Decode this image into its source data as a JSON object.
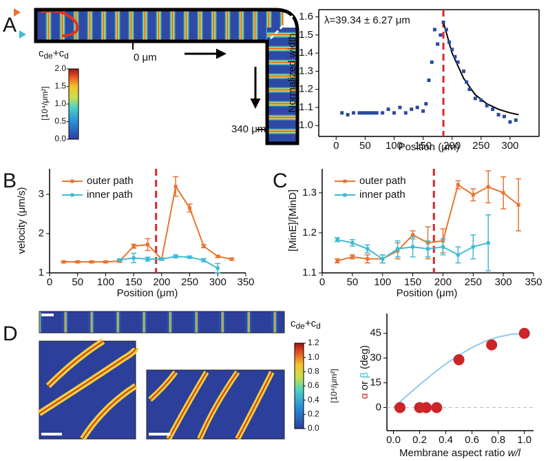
{
  "panel_labels": [
    "A",
    "B",
    "C",
    "D"
  ],
  "simulation_a": {
    "colorbar_label": [
      "c",
      "de",
      "+c",
      "d"
    ],
    "colorbar_unit": "[10⁴/μm²]",
    "range": [
      0,
      2
    ],
    "colorbar_ticks": [
      {
        "value": 0,
        "label": "0.0"
      },
      0.5,
      {
        "value": 1,
        "label": "1.0"
      },
      1.5,
      {
        "value": 2,
        "label": "2.0"
      }
    ],
    "start_label": "0 μm",
    "end_label": "340 μm"
  },
  "simulation_d": {
    "colorbar_label": [
      "c",
      "de",
      "+c",
      "d"
    ],
    "colorbar_unit": "[10⁴/μm²]",
    "range": [
      0,
      1.2
    ],
    "colorbar_ticks": [
      {
        "value": 0,
        "label": "0.0"
      },
      0.2,
      0.4,
      0.6,
      0.8,
      {
        "value": 1,
        "label": "1.0"
      },
      1.2
    ]
  },
  "chart_data": [
    {
      "type": "scatter",
      "x_label": "Position (μm)",
      "y_label": "Normalized width",
      "annotation": "λ=39.34 ± 6.27 μm",
      "marker": "square",
      "color": "#2b4a9b",
      "x": [
        10,
        20,
        30,
        40,
        45,
        50,
        55,
        60,
        65,
        70,
        80,
        90,
        100,
        110,
        120,
        130,
        140,
        150,
        155,
        160,
        165,
        170,
        175,
        180,
        185,
        190,
        195,
        200,
        205,
        210,
        220,
        225,
        230,
        240,
        250,
        260,
        270,
        280,
        290,
        300,
        310
      ],
      "values": [
        1.07,
        1.06,
        1.07,
        1.07,
        1.07,
        1.07,
        1.07,
        1.07,
        1.07,
        1.07,
        1.07,
        1.09,
        1.07,
        1.1,
        1.07,
        1.09,
        1.1,
        1.08,
        1.12,
        1.25,
        1.35,
        1.53,
        1.45,
        1.5,
        1.57,
        1.53,
        1.46,
        1.42,
        1.38,
        1.35,
        1.3,
        1.24,
        1.2,
        1.15,
        1.14,
        1.11,
        1.09,
        1.06,
        1.05,
        1.02,
        1.03
      ],
      "fit": {
        "color": "#000000",
        "x": [
          185,
          200,
          220,
          240,
          260,
          280,
          300,
          315
        ],
        "values": [
          1.57,
          1.4,
          1.26,
          1.17,
          1.12,
          1.09,
          1.07,
          1.06
        ]
      },
      "marker_line": {
        "x": 185,
        "color": "#d9262b"
      },
      "xlim": [
        -30,
        350
      ],
      "ylim": [
        0.94,
        1.64
      ],
      "xticks": [
        0,
        50,
        100,
        150,
        200,
        250,
        300
      ],
      "yticks": [
        {
          "value": 1,
          "label": "1.0"
        },
        1.1,
        1.2,
        1.3,
        1.4,
        1.5,
        1.6
      ]
    },
    {
      "type": "line",
      "x_label": "Position (μm)",
      "y_label": "velocity (μm/s)",
      "legend": "upper left",
      "marker_line": {
        "x": 190,
        "color": "#d9262b"
      },
      "series": [
        {
          "name": "outer path",
          "color": "#e8742f",
          "x": [
            25,
            50,
            75,
            100,
            125,
            150,
            175,
            200,
            225,
            250,
            275,
            300,
            325
          ],
          "values": [
            1.28,
            1.28,
            1.28,
            1.28,
            1.3,
            1.68,
            1.72,
            1.35,
            3.2,
            2.65,
            1.68,
            1.42,
            1.35
          ],
          "errors": [
            0.02,
            0.02,
            0.02,
            0.02,
            0.03,
            0.05,
            0.15,
            0.03,
            0.25,
            0.1,
            0.04,
            0.03,
            0.03
          ]
        },
        {
          "name": "inner path",
          "color": "#3fbad6",
          "x": [
            125,
            150,
            175,
            200,
            225,
            250,
            275,
            300
          ],
          "values": [
            1.33,
            1.38,
            1.35,
            1.35,
            1.42,
            1.4,
            1.32,
            1.12
          ],
          "errors": [
            0.03,
            0.12,
            0.05,
            0.03,
            0.04,
            0.03,
            0.04,
            0.12
          ]
        }
      ],
      "xlim": [
        0,
        350
      ],
      "ylim": [
        1,
        3.65
      ],
      "xticks": [
        0,
        50,
        100,
        150,
        200,
        250,
        300,
        350
      ],
      "yticks": [
        1,
        2,
        3
      ]
    },
    {
      "type": "line",
      "x_label": "Position (μm)",
      "y_label": "[MinE]/[MinD]",
      "legend": "upper left",
      "marker_line": {
        "x": 185,
        "color": "#d9262b"
      },
      "series": [
        {
          "name": "outer path",
          "color": "#e8742f",
          "x": [
            25,
            50,
            75,
            100,
            125,
            150,
            175,
            200,
            225,
            250,
            275,
            300,
            325
          ],
          "values": [
            1.13,
            1.14,
            1.135,
            1.135,
            1.155,
            1.195,
            1.175,
            1.18,
            1.32,
            1.295,
            1.315,
            1.3,
            1.27
          ],
          "errors": [
            0.005,
            0.005,
            0.01,
            0.01,
            0.02,
            0.01,
            0.04,
            0.03,
            0.01,
            0.015,
            0.04,
            0.04,
            0.065
          ]
        },
        {
          "name": "inner path",
          "color": "#3fbad6",
          "x": [
            25,
            50,
            75,
            100,
            125,
            150,
            175,
            200,
            225,
            250,
            275
          ],
          "values": [
            1.183,
            1.175,
            1.16,
            1.135,
            1.16,
            1.165,
            1.16,
            1.165,
            1.145,
            1.165,
            1.175
          ],
          "errors": [
            0.005,
            0.008,
            0.01,
            0.01,
            0.02,
            0.025,
            0.02,
            0.02,
            0.02,
            0.03,
            0.07
          ]
        }
      ],
      "xlim": [
        0,
        350
      ],
      "ylim": [
        1.1,
        1.36
      ],
      "xticks": [
        0,
        50,
        100,
        150,
        200,
        250,
        300,
        350
      ],
      "yticks": [
        1.1,
        1.2,
        1.3
      ]
    },
    {
      "type": "scatter",
      "x_label": [
        "Membrane aspect ratio ",
        "w/l"
      ],
      "y_label": [
        "α",
        " or ",
        "β",
        " (deg)"
      ],
      "marker": "circle",
      "color": "#cc2529",
      "x": [
        0.05,
        0.2,
        0.25,
        0.33,
        0.5,
        0.75,
        1.0
      ],
      "values": [
        0,
        0,
        0,
        0,
        29,
        38,
        45
      ],
      "fit": {
        "color": "#8ecbe8",
        "x": [
          0,
          0.1,
          0.2,
          0.3,
          0.4,
          0.5,
          0.6,
          0.7,
          0.8,
          0.9,
          1.0
        ],
        "values": [
          0,
          7.0,
          13.9,
          20.4,
          26.5,
          31.8,
          36.4,
          40.1,
          42.8,
          44.4,
          45
        ]
      },
      "reference_y": {
        "y": 0,
        "color": "#bbbbbb"
      },
      "xlim": [
        -0.05,
        1.07
      ],
      "ylim": [
        -14,
        57
      ],
      "xticks": [
        {
          "value": 0,
          "label": "0.0"
        },
        0.2,
        0.4,
        0.6,
        0.8,
        {
          "value": 1,
          "label": "1.0"
        }
      ],
      "yticks": [
        0,
        15,
        30,
        45
      ]
    }
  ]
}
